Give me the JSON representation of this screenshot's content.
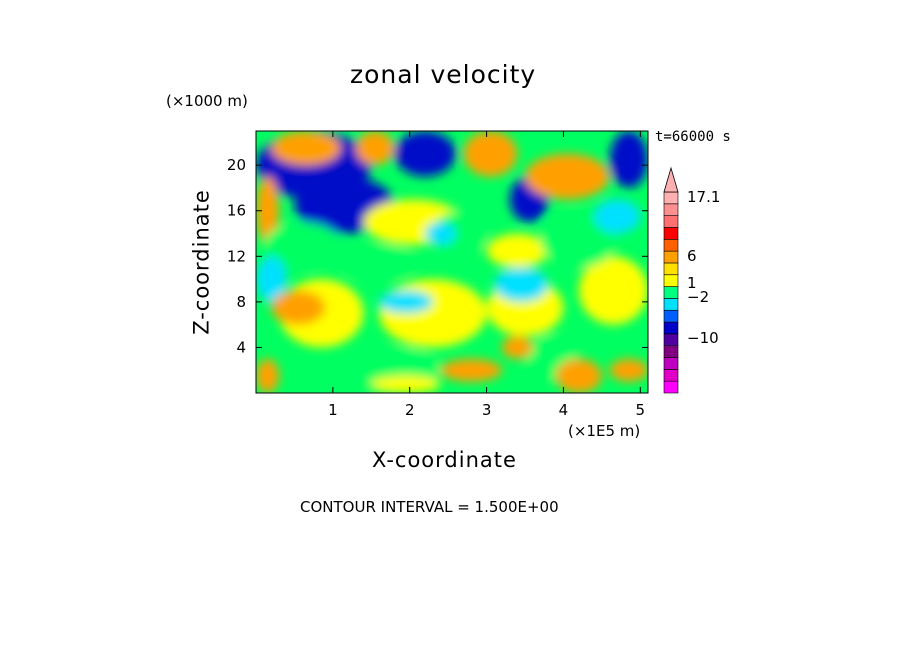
{
  "chart_data": {
    "type": "heatmap",
    "title": "zonal velocity",
    "xlabel": "X-coordinate",
    "ylabel": "Z-coordinate",
    "x_unit_label": "(×1E5 m)",
    "y_unit_label": "(×1000 m)",
    "time_label": "t=66000 s",
    "xlim": [
      0,
      5.1
    ],
    "ylim": [
      0,
      23
    ],
    "x_ticks": [
      "1",
      "2",
      "3",
      "4",
      "5"
    ],
    "x_tick_values": [
      1,
      2,
      3,
      4,
      5
    ],
    "y_ticks": [
      "4",
      "8",
      "12",
      "16",
      "20"
    ],
    "y_tick_values": [
      4,
      8,
      12,
      16,
      20
    ],
    "colorbar": {
      "labels": [
        "17.1",
        "6",
        "1",
        "−2",
        "−10"
      ],
      "levels": [
        {
          "color": "#ff00ff"
        },
        {
          "color": "#e000c8"
        },
        {
          "color": "#c000c0"
        },
        {
          "color": "#800080"
        },
        {
          "color": "#5000a0"
        },
        {
          "color": "#0000c8"
        },
        {
          "color": "#0060ff"
        },
        {
          "color": "#00e0ff"
        },
        {
          "color": "#00ff80"
        },
        {
          "color": "#ffff00"
        },
        {
          "color": "#ffe000"
        },
        {
          "color": "#ffa000"
        },
        {
          "color": "#ff6000"
        },
        {
          "color": "#ff0000"
        },
        {
          "color": "#ff7070"
        },
        {
          "color": "#ff9090"
        },
        {
          "color": "#ffb0b0"
        }
      ]
    },
    "field_regions": [
      {
        "x": [
          0.0,
          1.5
        ],
        "z": [
          17,
          23
        ],
        "value": -3
      },
      {
        "x": [
          0.5,
          1.8
        ],
        "z": [
          14,
          19
        ],
        "value": -3
      },
      {
        "x": [
          1.8,
          2.6
        ],
        "z": [
          19,
          23
        ],
        "value": -3
      },
      {
        "x": [
          3.3,
          3.8
        ],
        "z": [
          15,
          19
        ],
        "value": -3
      },
      {
        "x": [
          4.6,
          5.1
        ],
        "z": [
          18,
          23
        ],
        "value": -3
      },
      {
        "x": [
          0.2,
          1.1
        ],
        "z": [
          20,
          23
        ],
        "value": 4
      },
      {
        "x": [
          1.3,
          1.8
        ],
        "z": [
          20,
          23
        ],
        "value": 4
      },
      {
        "x": [
          3.5,
          4.6
        ],
        "z": [
          17,
          21
        ],
        "value": 4
      },
      {
        "x": [
          2.7,
          3.4
        ],
        "z": [
          19,
          23
        ],
        "value": 4
      },
      {
        "x": [
          0.0,
          0.3
        ],
        "z": [
          13,
          19
        ],
        "value": 4
      },
      {
        "x": [
          3.0,
          3.8
        ],
        "z": [
          11,
          14
        ],
        "value": 2
      },
      {
        "x": [
          1.4,
          2.7
        ],
        "z": [
          13,
          17
        ],
        "value": 2
      },
      {
        "x": [
          0.3,
          1.4
        ],
        "z": [
          4,
          10
        ],
        "value": 2
      },
      {
        "x": [
          1.6,
          3.0
        ],
        "z": [
          4,
          10
        ],
        "value": 2
      },
      {
        "x": [
          3.0,
          4.0
        ],
        "z": [
          5,
          10
        ],
        "value": 2
      },
      {
        "x": [
          4.2,
          5.1
        ],
        "z": [
          6,
          12
        ],
        "value": 2
      },
      {
        "x": [
          0.1,
          1.1
        ],
        "z": [
          11,
          15
        ],
        "value": 0
      },
      {
        "x": [
          1.1,
          2.1
        ],
        "z": [
          10,
          13
        ],
        "value": 0
      },
      {
        "x": [
          2.3,
          3.0
        ],
        "z": [
          12,
          16
        ],
        "value": 0
      },
      {
        "x": [
          3.7,
          4.7
        ],
        "z": [
          11,
          16
        ],
        "value": 0
      },
      {
        "x": [
          1.2,
          2.4
        ],
        "z": [
          0,
          4
        ],
        "value": 0
      },
      {
        "x": [
          3.5,
          4.2
        ],
        "z": [
          1,
          5
        ],
        "value": 0
      },
      {
        "x": [
          2.2,
          2.6
        ],
        "z": [
          13,
          15
        ],
        "value": -1
      },
      {
        "x": [
          3.1,
          3.8
        ],
        "z": [
          8,
          11
        ],
        "value": -1
      },
      {
        "x": [
          4.4,
          5.0
        ],
        "z": [
          14,
          17
        ],
        "value": -1
      },
      {
        "x": [
          0.0,
          0.4
        ],
        "z": [
          8,
          12
        ],
        "value": -1
      },
      {
        "x": [
          1.6,
          2.3
        ],
        "z": [
          7,
          9
        ],
        "value": -1
      },
      {
        "x": [
          0.2,
          0.9
        ],
        "z": [
          6,
          9
        ],
        "value": 4
      },
      {
        "x": [
          1.5,
          2.4
        ],
        "z": [
          0,
          1.5
        ],
        "value": 2
      },
      {
        "x": [
          2.4,
          3.2
        ],
        "z": [
          1,
          3
        ],
        "value": 4
      },
      {
        "x": [
          3.9,
          4.5
        ],
        "z": [
          0,
          3
        ],
        "value": 4
      },
      {
        "x": [
          4.6,
          5.1
        ],
        "z": [
          1,
          3
        ],
        "value": 4
      },
      {
        "x": [
          0.0,
          0.3
        ],
        "z": [
          0,
          3
        ],
        "value": 4
      },
      {
        "x": [
          3.2,
          3.6
        ],
        "z": [
          3,
          5
        ],
        "value": 4
      }
    ]
  },
  "contour_interval": "CONTOUR INTERVAL = 1.500E+00"
}
